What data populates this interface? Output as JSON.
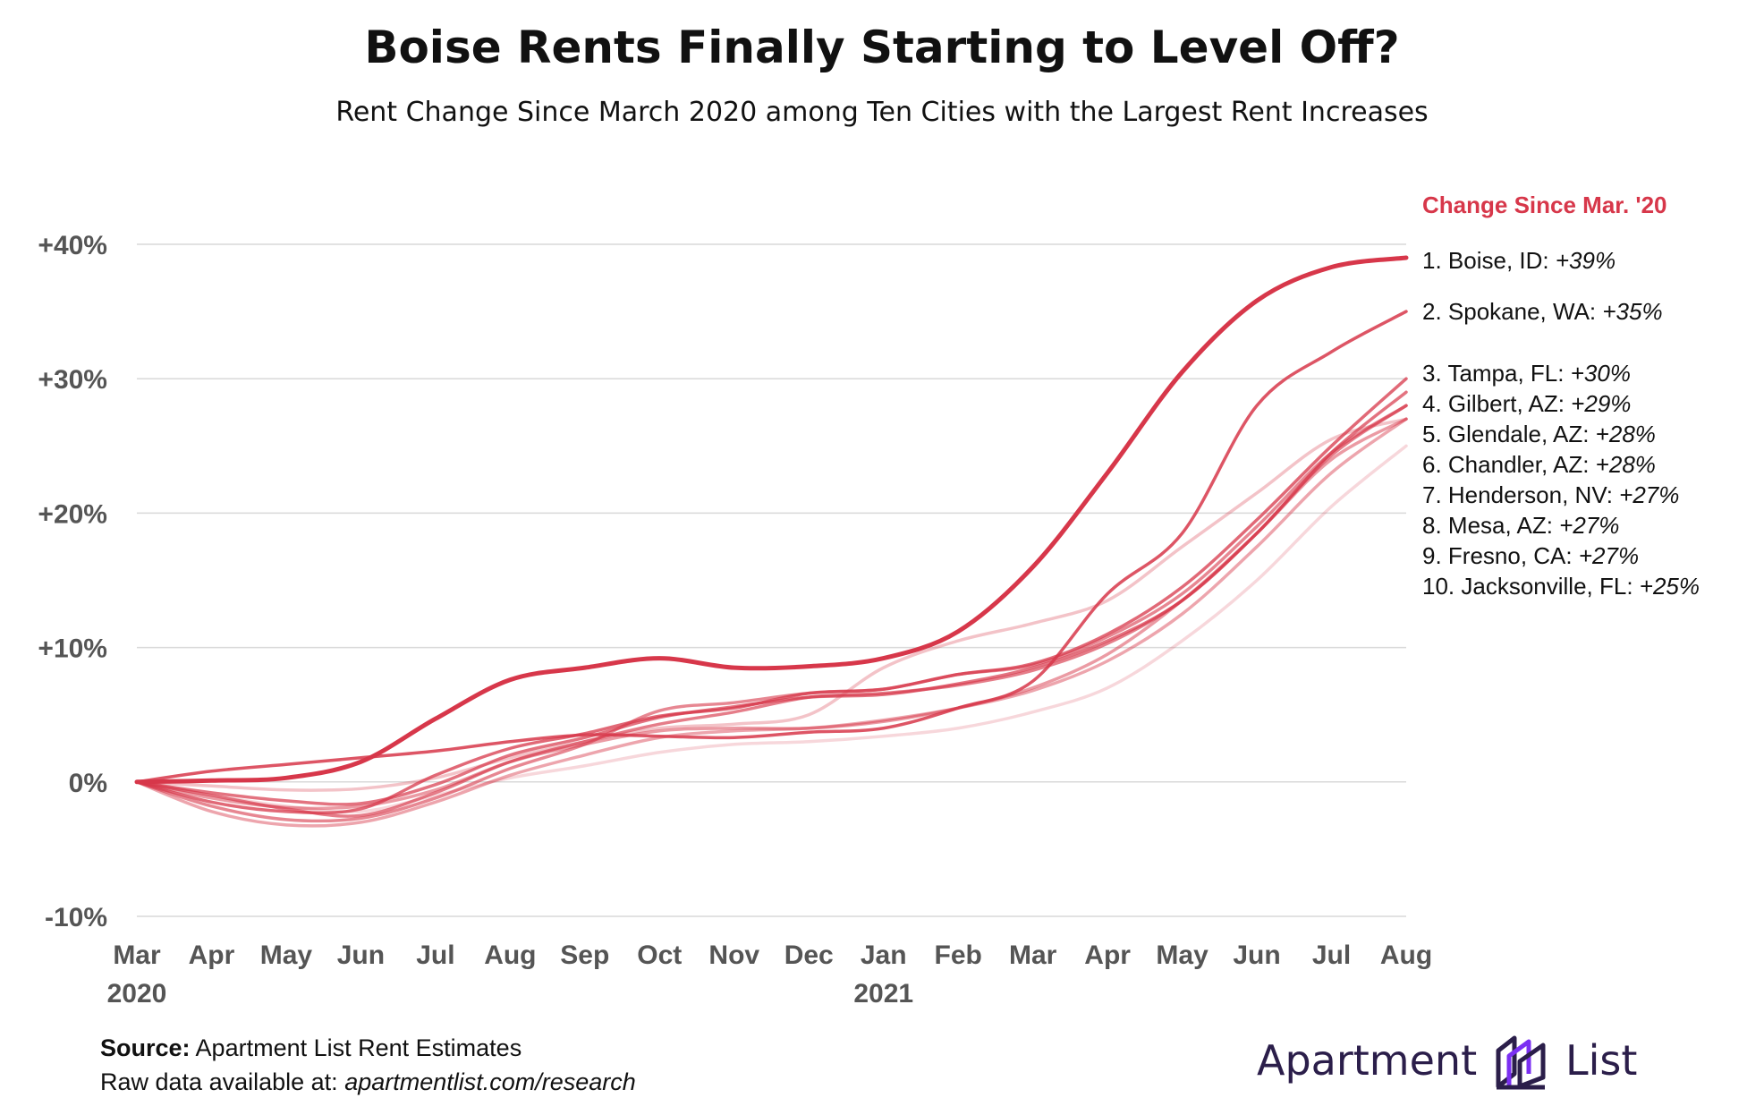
{
  "title": "Boise Rents Finally Starting to Level Off?",
  "subtitle": "Rent Change Since March 2020 among Ten Cities with the Largest Rent Increases",
  "source": {
    "label": "Source:",
    "text": "Apartment List Rent Estimates",
    "raw_label": "Raw data available at:",
    "raw_link": "apartmentlist.com/research"
  },
  "logo": {
    "word1": "Apartment",
    "word2": "List",
    "icon": "building-icon"
  },
  "colors": {
    "primary": "#d7374a",
    "grid": "#d9d9d9",
    "axis_text": "#555555",
    "logo": "#2b1e4a",
    "logo_accent": "#7b2ff2"
  },
  "chart_data": {
    "type": "line",
    "title": "Boise Rents Finally Starting to Level Off?",
    "subtitle": "Rent Change Since March 2020 among Ten Cities with the Largest Rent Increases",
    "legend_title": "Change Since Mar. '20",
    "x": [
      "Mar",
      "Apr",
      "May",
      "Jun",
      "Jul",
      "Aug",
      "Sep",
      "Oct",
      "Nov",
      "Dec",
      "Jan",
      "Feb",
      "Mar",
      "Apr",
      "May",
      "Jun",
      "Jul",
      "Aug"
    ],
    "x_year_labels": [
      {
        "index": 0,
        "label": "2020"
      },
      {
        "index": 10,
        "label": "2021"
      }
    ],
    "y_ticks": [
      {
        "value": 40,
        "label": "+40%"
      },
      {
        "value": 30,
        "label": "+30%"
      },
      {
        "value": 20,
        "label": "+20%"
      },
      {
        "value": 10,
        "label": "+10%"
      },
      {
        "value": 0,
        "label": "0%"
      },
      {
        "value": -10,
        "label": "-10%"
      }
    ],
    "ylim": [
      -10,
      40
    ],
    "grid": true,
    "legend_placement": "right",
    "series": [
      {
        "name": "Boise, ID",
        "rank": "1.",
        "final_label": "+39%",
        "opacity": 1.0,
        "values": [
          0,
          0.1,
          0.3,
          1.5,
          4.7,
          7.6,
          8.5,
          9.2,
          8.5,
          8.6,
          9.2,
          11.2,
          16,
          23,
          30.5,
          35.8,
          38.3,
          39
        ]
      },
      {
        "name": "Spokane, WA",
        "rank": "2.",
        "final_label": "+35%",
        "opacity": 0.85,
        "values": [
          0,
          0.8,
          1.3,
          1.8,
          2.3,
          3,
          3.5,
          3.4,
          3.3,
          3.7,
          4,
          5.5,
          7.5,
          14,
          18.5,
          28,
          32,
          35
        ]
      },
      {
        "name": "Tampa, FL",
        "rank": "3.",
        "final_label": "+30%",
        "opacity": 0.75,
        "values": [
          0,
          -1.5,
          -2.2,
          -2,
          0.5,
          2.5,
          3.6,
          4.9,
          5.5,
          6.6,
          6.9,
          8,
          8.8,
          11,
          14.5,
          19.5,
          25,
          30
        ]
      },
      {
        "name": "Gilbert, AZ",
        "rank": "4.",
        "final_label": "+29%",
        "opacity": 0.7,
        "values": [
          0,
          -0.8,
          -1.4,
          -1.6,
          -0.2,
          2,
          3.3,
          4.8,
          5.6,
          6.3,
          6.5,
          7.3,
          8.5,
          10.5,
          13.5,
          18.5,
          24.5,
          29
        ]
      },
      {
        "name": "Glendale, AZ",
        "rank": "5.",
        "final_label": "+28%",
        "opacity": 0.65,
        "values": [
          0,
          -1,
          -2,
          -2.5,
          -0.8,
          1.5,
          3,
          4.3,
          5.2,
          6.3,
          6.6,
          7.2,
          8.3,
          10.3,
          13.5,
          18.5,
          24.3,
          28
        ]
      },
      {
        "name": "Chandler, AZ",
        "rank": "6.",
        "final_label": "+28%",
        "opacity": 0.6,
        "values": [
          0,
          -1.8,
          -2.8,
          -2.7,
          -1.2,
          1,
          2.8,
          5.3,
          5.9,
          6.6,
          6.9,
          8,
          8.7,
          10.8,
          14,
          19,
          24.5,
          28
        ]
      },
      {
        "name": "Henderson, NV",
        "rank": "7.",
        "final_label": "+27%",
        "opacity": 0.5,
        "values": [
          0,
          -1.2,
          -1.9,
          -1.8,
          -0.6,
          1.5,
          2.8,
          3.8,
          4,
          4,
          4.5,
          5.5,
          7,
          9.5,
          13.5,
          18.5,
          24,
          27
        ]
      },
      {
        "name": "Mesa, AZ",
        "rank": "8.",
        "final_label": "+27%",
        "opacity": 0.45,
        "values": [
          0,
          -2.2,
          -3.2,
          -3,
          -1.5,
          0.5,
          2,
          3.3,
          3.8,
          4,
          4.6,
          5.5,
          6.8,
          9,
          12.5,
          17.5,
          23,
          27
        ]
      },
      {
        "name": "Fresno, CA",
        "rank": "9.",
        "final_label": "+27%",
        "opacity": 0.3,
        "values": [
          0,
          -0.3,
          -0.6,
          -0.5,
          0.3,
          1.8,
          3,
          4,
          4.3,
          5,
          8.5,
          10.5,
          11.8,
          13.5,
          17.5,
          21.5,
          25.5,
          27
        ]
      },
      {
        "name": "Jacksonville, FL",
        "rank": "10.",
        "final_label": "+25%",
        "opacity": 0.2,
        "values": [
          0,
          -1,
          -1.8,
          -2.2,
          -1,
          0.3,
          1.2,
          2.2,
          2.8,
          3,
          3.4,
          4,
          5.2,
          7,
          10.5,
          15,
          20.5,
          25
        ]
      }
    ]
  }
}
